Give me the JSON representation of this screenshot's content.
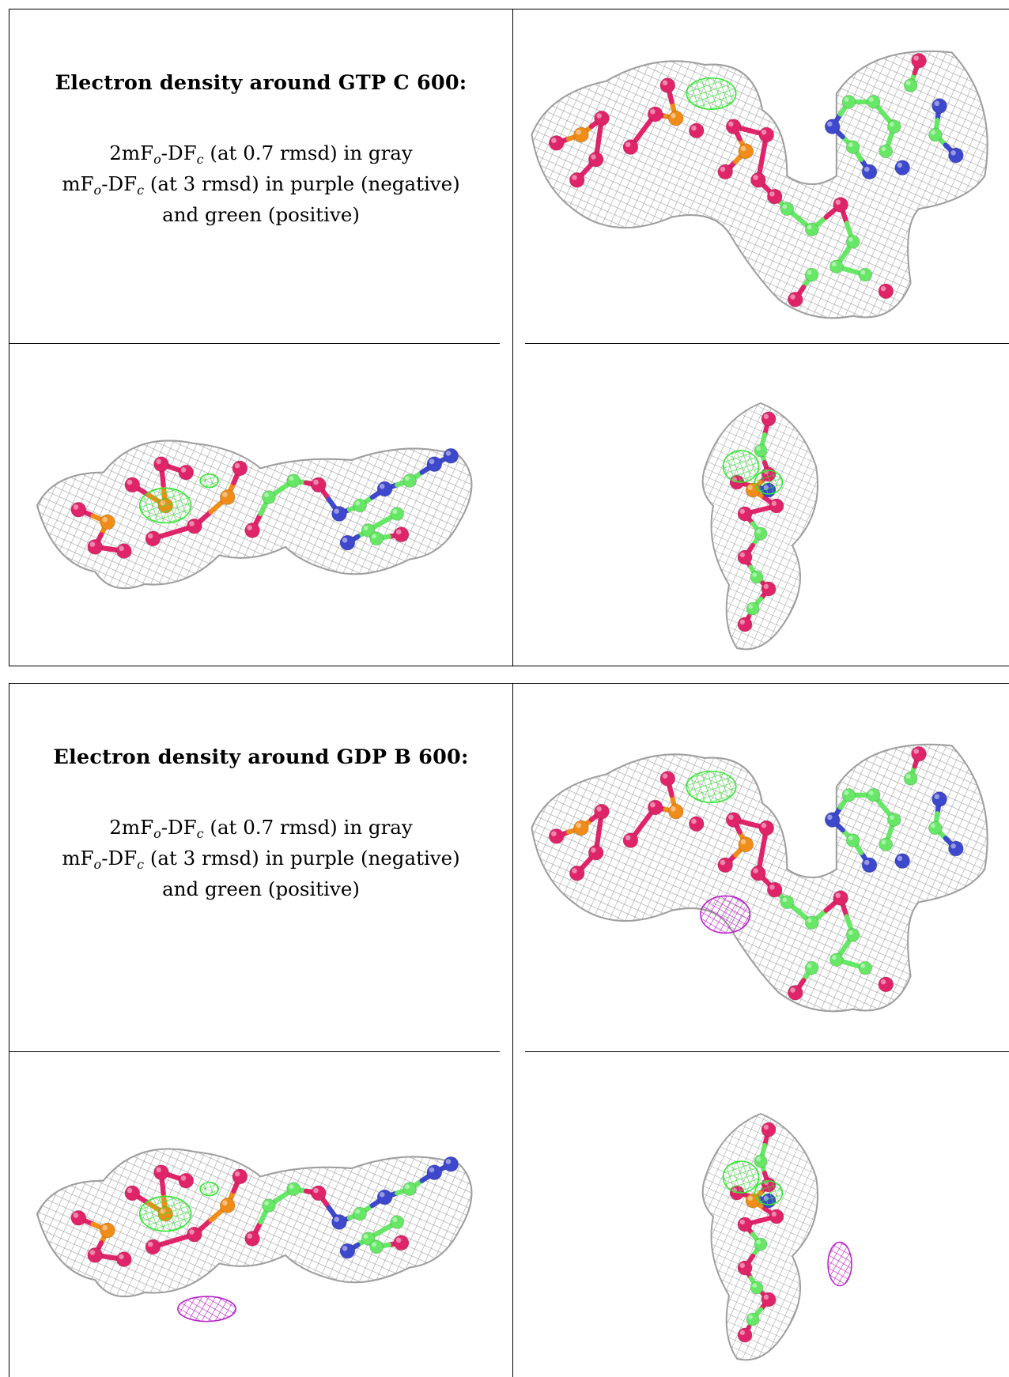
{
  "colors": {
    "mesh": "#9a9a9a",
    "positive_density": "#33e633",
    "negative_density": "#b820c8",
    "carbon": "#66e866",
    "nitrogen": "#3e48cc",
    "oxygen": "#e0246a",
    "phosphorus": "#f08c18"
  },
  "panels": [
    {
      "title": "Electron density around GTP C 600:",
      "line1_pre": "2mF",
      "line1_sub1": "o",
      "line1_mid": "-DF",
      "line1_sub2": "c",
      "line1_post": " (at 0.7 rmsd) in gray",
      "line2_pre": "mF",
      "line2_sub1": "o",
      "line2_mid": "-DF",
      "line2_sub2": "c",
      "line2_post": " (at 3 rmsd) in purple (negative)",
      "line3": "and green (positive)",
      "views": [
        "front-view",
        "side-view",
        "end-view"
      ],
      "difference_blobs": [
        "positive"
      ]
    },
    {
      "title": "Electron density around GDP B 600:",
      "line1_pre": "2mF",
      "line1_sub1": "o",
      "line1_mid": "-DF",
      "line1_sub2": "c",
      "line1_post": " (at 0.7 rmsd) in gray",
      "line2_pre": "mF",
      "line2_sub1": "o",
      "line2_mid": "-DF",
      "line2_sub2": "c",
      "line2_post": " (at 3 rmsd) in purple (negative)",
      "line3": "and green (positive)",
      "views": [
        "front-view",
        "side-view",
        "end-view"
      ],
      "difference_blobs": [
        "positive",
        "negative"
      ]
    }
  ]
}
